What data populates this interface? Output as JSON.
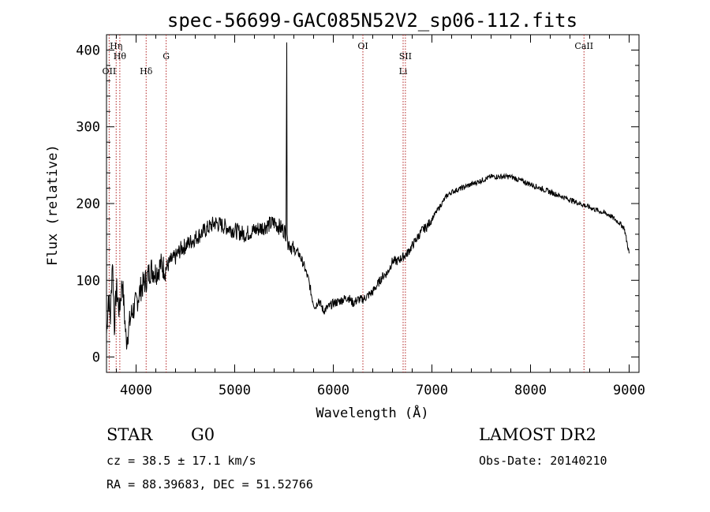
{
  "chart_data": {
    "type": "line",
    "title": "spec-56699-GAC085N52V2_sp06-112.fits",
    "xlabel": "Wavelength (Å)",
    "ylabel": "Flux (relative)",
    "xlim": [
      3700,
      9100
    ],
    "ylim": [
      -20,
      420
    ],
    "x_ticks": [
      4000,
      5000,
      6000,
      7000,
      8000,
      9000
    ],
    "y_ticks": [
      0,
      100,
      200,
      300,
      400
    ],
    "grid": false,
    "series": [
      {
        "color": "#000000",
        "x": [
          3700,
          3720,
          3740,
          3760,
          3780,
          3800,
          3830,
          3860,
          3900,
          3950,
          4000,
          4050,
          4100,
          4150,
          4200,
          4250,
          4300,
          4350,
          4400,
          4450,
          4500,
          4600,
          4700,
          4800,
          4900,
          5000,
          5100,
          5200,
          5300,
          5400,
          5500,
          5520,
          5528,
          5532,
          5540,
          5600,
          5650,
          5700,
          5750,
          5780,
          5800,
          5820,
          5850,
          5900,
          5950,
          6000,
          6050,
          6100,
          6150,
          6200,
          6250,
          6300,
          6350,
          6400,
          6450,
          6500,
          6550,
          6600,
          6650,
          6700,
          6750,
          6800,
          6850,
          6900,
          6950,
          7000,
          7050,
          7100,
          7150,
          7200,
          7300,
          7400,
          7500,
          7600,
          7700,
          7800,
          7900,
          8000,
          8100,
          8200,
          8300,
          8400,
          8500,
          8600,
          8700,
          8800,
          8900,
          8950,
          9000
        ],
        "y": [
          30,
          80,
          50,
          130,
          40,
          90,
          60,
          100,
          20,
          55,
          70,
          90,
          100,
          115,
          110,
          120,
          115,
          125,
          130,
          140,
          145,
          155,
          165,
          175,
          170,
          165,
          160,
          165,
          170,
          175,
          165,
          162,
          410,
          160,
          150,
          140,
          135,
          120,
          100,
          80,
          70,
          65,
          75,
          60,
          65,
          70,
          72,
          75,
          78,
          70,
          75,
          75,
          80,
          85,
          95,
          105,
          110,
          125,
          125,
          130,
          135,
          145,
          155,
          165,
          170,
          180,
          190,
          200,
          210,
          215,
          220,
          225,
          230,
          235,
          235,
          235,
          230,
          225,
          220,
          215,
          210,
          205,
          200,
          195,
          190,
          185,
          175,
          168,
          135
        ]
      }
    ],
    "lines": [
      {
        "x": 3727,
        "labels": [
          "OII"
        ]
      },
      {
        "x": 3798,
        "labels": [
          "Hη"
        ]
      },
      {
        "x": 3835,
        "labels": [
          "Hθ"
        ]
      },
      {
        "x": 4102,
        "labels": [
          "Hδ"
        ]
      },
      {
        "x": 4305,
        "labels": [
          "G"
        ]
      },
      {
        "x": 6300,
        "labels": [
          "OI"
        ]
      },
      {
        "x": 6708,
        "labels": [
          "Li"
        ]
      },
      {
        "x": 6731,
        "labels": [
          "SII"
        ]
      },
      {
        "x": 8542,
        "labels": [
          "CaII"
        ]
      }
    ]
  },
  "footer": {
    "type_label": "STAR",
    "subclass": "G0",
    "survey": "LAMOST DR2",
    "cz": "cz = 38.5 ± 17.1 km/s",
    "obs_date": "Obs-Date: 20140210",
    "coords": "RA =  88.39683, DEC =  51.52766"
  }
}
